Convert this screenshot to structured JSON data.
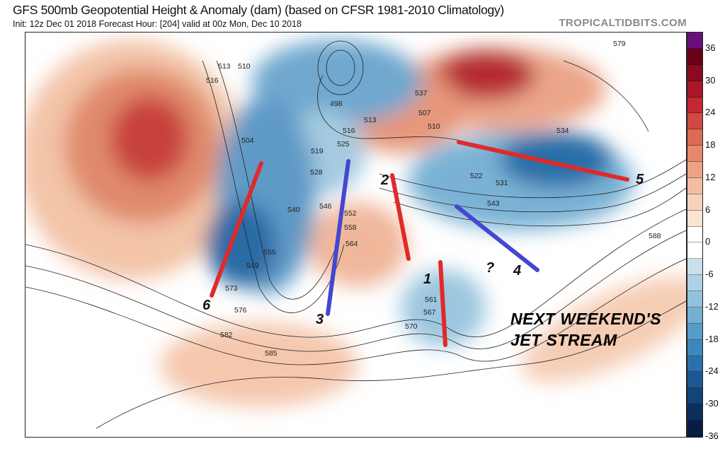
{
  "header": {
    "title": "GFS 500mb Geopotential Height & Anomaly (dam) (based on CFSR 1981-2010 Climatology)",
    "subtitle": "Init: 12z Dec 01 2018   Forecast Hour: [204]   valid at 00z Mon, Dec 10 2018",
    "brand": "TROPICALTIDBITS.COM"
  },
  "colorbar": {
    "labels": [
      "36",
      "30",
      "24",
      "18",
      "12",
      "6",
      "0",
      "-6",
      "-12",
      "-18",
      "-24",
      "-30",
      "-36"
    ],
    "colors": [
      "#6a0f7a",
      "#6b0019",
      "#8a0a22",
      "#a8162a",
      "#c22a33",
      "#cf4a42",
      "#dc6a55",
      "#e5886b",
      "#eda486",
      "#f2bda2",
      "#f6d2bd",
      "#fae4d6",
      "#ffffff",
      "#ffffff",
      "#c9e0ec",
      "#aed2e5",
      "#92c2dc",
      "#74b0d3",
      "#579cc7",
      "#3e87bb",
      "#2c70ab",
      "#1d5895",
      "#124379",
      "#0b2f5d",
      "#071d45"
    ]
  },
  "contour_labels": [
    "513",
    "510",
    "516",
    "498",
    "504",
    "507",
    "510",
    "513",
    "516",
    "519",
    "522",
    "525",
    "528",
    "531",
    "534",
    "537",
    "540",
    "543",
    "546",
    "549",
    "552",
    "555",
    "558",
    "561",
    "564",
    "567",
    "570",
    "573",
    "576",
    "579",
    "582",
    "585",
    "588"
  ],
  "annotations": {
    "numbers": [
      "1",
      "2",
      "3",
      "?",
      "4",
      "5",
      "6"
    ],
    "caption_line1": "NEXT WEEKEND'S",
    "caption_line2": "JET STREAM"
  }
}
